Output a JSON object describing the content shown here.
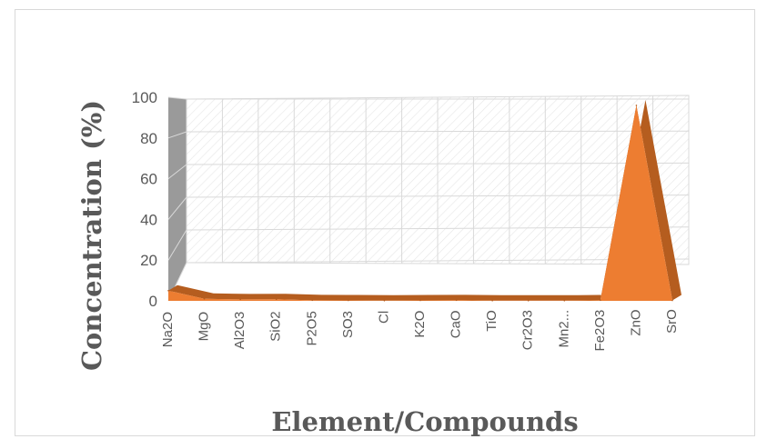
{
  "chart_data": {
    "type": "area",
    "title": "",
    "xlabel": "Element/Compounds",
    "ylabel": "Concentration (%)",
    "ylim": [
      0,
      100
    ],
    "y_ticks": [
      "0",
      "20",
      "40",
      "60",
      "80",
      "100"
    ],
    "categories": [
      "Na2O",
      "MgO",
      "Al2O3",
      "SiO2",
      "P2O5",
      "SO3",
      "Cl",
      "K2O",
      "CaO",
      "TiO",
      "Cr2O3",
      "Mn2...",
      "Fe2O3",
      "ZnO",
      "SrO"
    ],
    "series": [
      {
        "values": [
          5,
          1,
          0.7,
          0.8,
          0.3,
          0.2,
          0.1,
          0.2,
          0.3,
          0.1,
          0.1,
          0.1,
          0.3,
          96,
          0.2
        ]
      }
    ],
    "grid": true,
    "legend": "none",
    "colors": {
      "area": "#ed7d31",
      "area_dark": "#b55d1f",
      "grid": "#d9d9d9",
      "hatch": "#e6e6e6",
      "side_wall": "#9a9a9a"
    }
  }
}
